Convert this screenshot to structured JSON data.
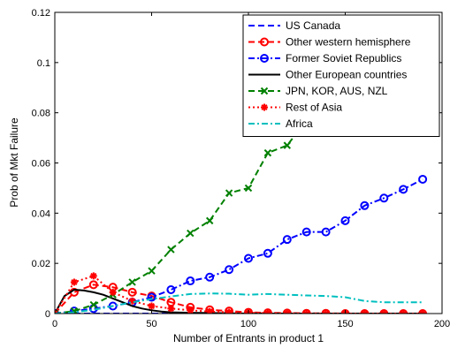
{
  "chart_data": {
    "type": "line",
    "title": "",
    "xlabel": "Number of Entrants in product 1",
    "ylabel": "Prob of Mkt Failure",
    "xlim": [
      0,
      200
    ],
    "ylim": [
      0,
      0.12
    ],
    "xticks": [
      0,
      50,
      100,
      150,
      200
    ],
    "xtick_labels": [
      "0",
      "50",
      "100",
      "150",
      "200"
    ],
    "yticks": [
      0,
      0.02,
      0.04,
      0.06,
      0.08,
      0.1,
      0.12
    ],
    "ytick_labels": [
      "0",
      "0.02",
      "0.04",
      "0.06",
      "0.08",
      "0.1",
      "0.12"
    ],
    "grid": false,
    "legend_position": "top-right",
    "series": [
      {
        "name": "US Canada",
        "color": "#0000ff",
        "dash": "dashed",
        "marker": "none",
        "x": [
          0,
          10,
          20,
          30,
          40,
          50,
          60,
          70,
          80,
          90,
          100,
          110,
          120,
          130,
          140,
          150,
          160,
          170,
          180,
          190
        ],
        "y": [
          0,
          0,
          0,
          0,
          0,
          0,
          0,
          0,
          0,
          0,
          0,
          0,
          0,
          0,
          0,
          0,
          0,
          0,
          0,
          0
        ]
      },
      {
        "name": "Other western hemisphere",
        "color": "#ff0000",
        "dash": "dashed",
        "marker": "circle",
        "x": [
          0,
          10,
          20,
          30,
          40,
          50,
          60,
          70,
          80,
          90,
          100,
          110,
          120,
          130,
          140,
          150,
          160,
          170,
          180,
          190
        ],
        "y": [
          0,
          0.0085,
          0.0115,
          0.0105,
          0.0085,
          0.007,
          0.0045,
          0.0025,
          0.0015,
          0.001,
          0.0005,
          0.0003,
          0.0002,
          0.0001,
          0.0001,
          0,
          0,
          0,
          0,
          0
        ]
      },
      {
        "name": "Former Soviet Republics",
        "color": "#0000ff",
        "dash": "dashdot",
        "marker": "circle",
        "x": [
          0,
          10,
          20,
          30,
          40,
          50,
          60,
          70,
          80,
          90,
          100,
          110,
          120,
          130,
          140,
          150,
          160,
          170,
          180,
          190
        ],
        "y": [
          0,
          0.001,
          0.002,
          0.003,
          0.0045,
          0.0065,
          0.0095,
          0.013,
          0.0145,
          0.0175,
          0.022,
          0.024,
          0.0295,
          0.0325,
          0.0325,
          0.037,
          0.043,
          0.046,
          0.0495,
          0.0535
        ]
      },
      {
        "name": "Other European countries",
        "color": "#000000",
        "dash": "solid",
        "marker": "none",
        "x": [
          0,
          5,
          10,
          15,
          20,
          25,
          30,
          35,
          40,
          45,
          50,
          55,
          60,
          70,
          80,
          90,
          100,
          120,
          140,
          160,
          190
        ],
        "y": [
          0,
          0.007,
          0.0095,
          0.0092,
          0.0085,
          0.0075,
          0.006,
          0.0045,
          0.003,
          0.002,
          0.0013,
          0.0008,
          0.0005,
          0.0003,
          0.0002,
          0.0001,
          0,
          0,
          0,
          0,
          0
        ]
      },
      {
        "name": "JPN, KOR, AUS, NZL",
        "color": "#008000",
        "dash": "dashed",
        "marker": "x",
        "x": [
          0,
          10,
          20,
          30,
          40,
          50,
          60,
          70,
          80,
          90,
          100,
          110,
          120,
          130,
          140
        ],
        "y": [
          0,
          0.001,
          0.0035,
          0.0075,
          0.0125,
          0.017,
          0.0255,
          0.032,
          0.037,
          0.048,
          0.05,
          0.064,
          0.067,
          0.077,
          0.09
        ]
      },
      {
        "name": "Rest of Asia",
        "color": "#ff0000",
        "dash": "dotted",
        "marker": "star",
        "x": [
          0,
          10,
          20,
          30,
          40,
          50,
          60,
          70,
          80,
          90,
          100,
          110,
          120,
          130,
          140,
          150,
          160,
          170,
          180,
          190
        ],
        "y": [
          0,
          0.0125,
          0.015,
          0.0085,
          0.005,
          0.003,
          0.002,
          0.0013,
          0.0008,
          0.0005,
          0.0003,
          0.0002,
          0.0001,
          0,
          0,
          0,
          0,
          0,
          0,
          0
        ]
      },
      {
        "name": "Africa",
        "color": "#00bfbf",
        "dash": "dashdot",
        "marker": "none",
        "x": [
          0,
          10,
          20,
          30,
          40,
          50,
          60,
          70,
          80,
          90,
          100,
          110,
          120,
          130,
          140,
          150,
          160,
          170,
          180,
          190
        ],
        "y": [
          0,
          0.0005,
          0.0015,
          0.003,
          0.0045,
          0.0058,
          0.0068,
          0.0078,
          0.008,
          0.0079,
          0.0075,
          0.0078,
          0.0075,
          0.0072,
          0.007,
          0.0065,
          0.005,
          0.0045,
          0.0045,
          0.0045
        ]
      }
    ]
  }
}
